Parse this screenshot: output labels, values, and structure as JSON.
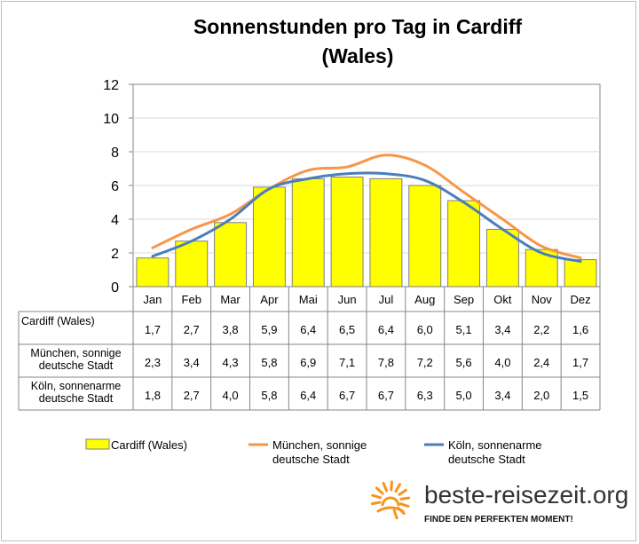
{
  "chart_data": {
    "type": "bar",
    "title_lines": [
      "Sonnenstunden pro Tag in Cardiff",
      "(Wales)"
    ],
    "categories": [
      "Jan",
      "Feb",
      "Mar",
      "Apr",
      "Mai",
      "Jun",
      "Jul",
      "Aug",
      "Sep",
      "Okt",
      "Nov",
      "Dez"
    ],
    "y_ticks": [
      "0",
      "2",
      "4",
      "6",
      "8",
      "10",
      "12"
    ],
    "ylim": [
      0,
      12
    ],
    "grid": true,
    "series": [
      {
        "name": "Cardiff (Wales)",
        "table_label_lines": [
          "Cardiff (Wales)"
        ],
        "legend_label_lines": [
          "Cardiff (Wales)"
        ],
        "kind": "bar",
        "color": "#ffff00",
        "values": [
          1.7,
          2.7,
          3.8,
          5.9,
          6.4,
          6.5,
          6.4,
          6.0,
          5.1,
          3.4,
          2.2,
          1.6
        ],
        "labels": [
          "1,7",
          "2,7",
          "3,8",
          "5,9",
          "6,4",
          "6,5",
          "6,4",
          "6,0",
          "5,1",
          "3,4",
          "2,2",
          "1,6"
        ]
      },
      {
        "name": "München, sonnige deutsche Stadt",
        "table_label_lines": [
          "München, sonnige",
          "deutsche Stadt"
        ],
        "legend_label_lines": [
          "München, sonnige",
          "deutsche Stadt"
        ],
        "kind": "line",
        "color": "#f79646",
        "values": [
          2.3,
          3.4,
          4.3,
          5.8,
          6.9,
          7.1,
          7.8,
          7.2,
          5.6,
          4.0,
          2.4,
          1.7
        ],
        "labels": [
          "2,3",
          "3,4",
          "4,3",
          "5,8",
          "6,9",
          "7,1",
          "7,8",
          "7,2",
          "5,6",
          "4,0",
          "2,4",
          "1,7"
        ]
      },
      {
        "name": "Köln, sonnenarme deutsche Stadt",
        "table_label_lines": [
          "Köln, sonnenarme",
          "deutsche Stadt"
        ],
        "legend_label_lines": [
          "Köln, sonnenarme",
          "deutsche Stadt"
        ],
        "kind": "line",
        "color": "#4a7ebb",
        "values": [
          1.8,
          2.7,
          4.0,
          5.8,
          6.4,
          6.7,
          6.7,
          6.3,
          5.0,
          3.4,
          2.0,
          1.5
        ],
        "labels": [
          "1,8",
          "2,7",
          "4,0",
          "5,8",
          "6,4",
          "6,7",
          "6,7",
          "6,3",
          "5,0",
          "3,4",
          "2,0",
          "1,5"
        ]
      }
    ],
    "legend_position": "bottom"
  },
  "branding": {
    "site": "beste-reisezeit.org",
    "slogan": "FINDE DEN PERFEKTEN MOMENT!",
    "icon": "sun-icon",
    "icon_color": "#f7941d"
  }
}
